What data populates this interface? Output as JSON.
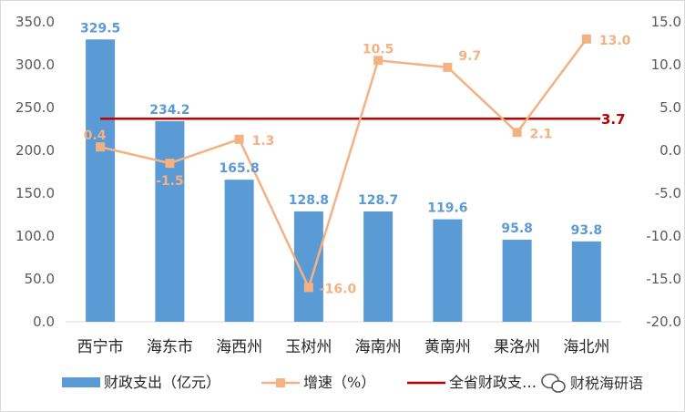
{
  "chart_data": {
    "type": "bar",
    "categories": [
      "西宁市",
      "海东市",
      "海西州",
      "玉树州",
      "海南州",
      "黄南州",
      "果洛州",
      "海北州"
    ],
    "series": [
      {
        "name": "财政支出（亿元）",
        "type": "bar",
        "axis": "left",
        "color": "#5b9bd5",
        "values": [
          329.5,
          234.2,
          165.8,
          128.8,
          128.7,
          119.6,
          95.8,
          93.8
        ],
        "labels": [
          "329.5",
          "234.2",
          "165.8",
          "128.8",
          "128.7",
          "119.6",
          "95.8",
          "93.8"
        ]
      },
      {
        "name": "增速（%）",
        "type": "line",
        "axis": "right",
        "color": "#f4b183",
        "values": [
          0.4,
          -1.5,
          1.3,
          -16.0,
          10.5,
          9.7,
          2.1,
          13.0
        ],
        "labels": [
          "0.4",
          "-1.5",
          "1.3",
          "-16.0",
          "10.5",
          "9.7",
          "2.1",
          "13.0"
        ]
      },
      {
        "name": "全省财政支…",
        "type": "reference-line",
        "axis": "right",
        "color": "#c00000",
        "value": 3.7,
        "label": "3.7"
      }
    ],
    "y_left": {
      "ylim": [
        0,
        350
      ],
      "ticks": [
        "0.0",
        "50.0",
        "100.0",
        "150.0",
        "200.0",
        "250.0",
        "300.0",
        "350.0"
      ],
      "tick_values": [
        0,
        50,
        100,
        150,
        200,
        250,
        300,
        350
      ]
    },
    "y_right": {
      "ylim": [
        -20,
        15
      ],
      "ticks": [
        "-20.0",
        "-15.0",
        "-10.0",
        "-5.0",
        "0.0",
        "5.0",
        "10.0",
        "15.0"
      ],
      "tick_values": [
        -20,
        -15,
        -10,
        -5,
        0,
        5,
        10,
        15
      ]
    },
    "grid": false,
    "legend_position": "bottom"
  },
  "watermark": {
    "text": "财税海研语",
    "icon": "wechat-icon"
  }
}
